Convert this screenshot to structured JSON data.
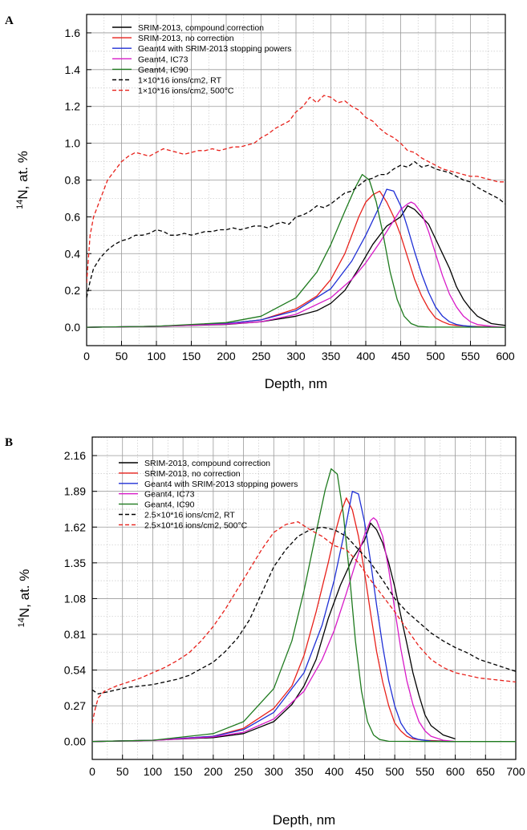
{
  "chart_data": [
    {
      "panel": "A",
      "type": "line",
      "xlabel": "Depth, nm",
      "ylabel_sup": "14",
      "ylabel_main": "N, at. %",
      "xlim": [
        0,
        600
      ],
      "ylim": [
        -0.1,
        1.7
      ],
      "xticks": [
        0,
        50,
        100,
        150,
        200,
        250,
        300,
        350,
        400,
        450,
        500,
        550,
        600
      ],
      "yticks": [
        0.0,
        0.2,
        0.4,
        0.6,
        0.8,
        1.0,
        1.2,
        1.4,
        1.6
      ],
      "ytick_labels": [
        "0.0",
        "0.2",
        "0.4",
        "0.6",
        "0.8",
        "1.0",
        "1.2",
        "1.4",
        "1.6"
      ],
      "grid": true,
      "legend_position": "top-left",
      "series": [
        {
          "name": "SRIM-2013, compound correction",
          "color": "#000000",
          "dash": "solid",
          "x": [
            0,
            100,
            200,
            250,
            300,
            330,
            350,
            370,
            390,
            410,
            430,
            450,
            460,
            470,
            480,
            490,
            500,
            510,
            520,
            530,
            540,
            550,
            560,
            580,
            600
          ],
          "y": [
            0,
            0.005,
            0.015,
            0.03,
            0.06,
            0.09,
            0.13,
            0.2,
            0.32,
            0.45,
            0.55,
            0.6,
            0.66,
            0.64,
            0.6,
            0.56,
            0.48,
            0.4,
            0.32,
            0.22,
            0.15,
            0.1,
            0.06,
            0.02,
            0.01
          ]
        },
        {
          "name": "SRIM-2013, no correction",
          "color": "#e8211b",
          "dash": "solid",
          "x": [
            0,
            100,
            200,
            250,
            300,
            330,
            350,
            370,
            390,
            400,
            410,
            420,
            430,
            440,
            450,
            460,
            470,
            480,
            490,
            500,
            510,
            520,
            530,
            550,
            600
          ],
          "y": [
            0,
            0.005,
            0.02,
            0.04,
            0.1,
            0.17,
            0.26,
            0.4,
            0.6,
            0.68,
            0.72,
            0.74,
            0.68,
            0.6,
            0.5,
            0.38,
            0.26,
            0.17,
            0.1,
            0.05,
            0.03,
            0.015,
            0.01,
            0.005,
            0
          ]
        },
        {
          "name": "Geant4 with SRIM-2013 stopping powers",
          "color": "#1f2fd6",
          "dash": "solid",
          "x": [
            0,
            100,
            200,
            250,
            300,
            350,
            380,
            400,
            420,
            430,
            440,
            450,
            460,
            470,
            480,
            490,
            500,
            510,
            520,
            530,
            540,
            560,
            600
          ],
          "y": [
            0,
            0.005,
            0.02,
            0.04,
            0.09,
            0.21,
            0.36,
            0.5,
            0.66,
            0.75,
            0.74,
            0.66,
            0.54,
            0.41,
            0.29,
            0.19,
            0.11,
            0.06,
            0.03,
            0.015,
            0.008,
            0.002,
            0
          ]
        },
        {
          "name": "Geant4, IC73",
          "color": "#d81bc8",
          "dash": "solid",
          "x": [
            0,
            100,
            200,
            250,
            300,
            350,
            380,
            400,
            420,
            440,
            450,
            460,
            465,
            470,
            480,
            490,
            500,
            510,
            520,
            530,
            540,
            550,
            560,
            580,
            600
          ],
          "y": [
            0,
            0.004,
            0.017,
            0.03,
            0.07,
            0.16,
            0.26,
            0.35,
            0.46,
            0.58,
            0.64,
            0.67,
            0.68,
            0.67,
            0.62,
            0.52,
            0.4,
            0.28,
            0.18,
            0.11,
            0.06,
            0.03,
            0.015,
            0.005,
            0
          ]
        },
        {
          "name": "Geant4, IC90",
          "color": "#1e7a1e",
          "dash": "solid",
          "x": [
            0,
            100,
            200,
            250,
            300,
            330,
            350,
            370,
            385,
            395,
            405,
            415,
            425,
            435,
            445,
            455,
            465,
            475,
            490,
            600
          ],
          "y": [
            0,
            0.005,
            0.025,
            0.06,
            0.16,
            0.3,
            0.45,
            0.63,
            0.76,
            0.83,
            0.8,
            0.68,
            0.5,
            0.3,
            0.15,
            0.06,
            0.02,
            0.005,
            0.001,
            0
          ]
        },
        {
          "name": "1×10*16 ions/cm2, RT",
          "color": "#000000",
          "dash": "dashed",
          "x": [
            0,
            5,
            10,
            20,
            30,
            40,
            50,
            60,
            70,
            80,
            90,
            100,
            110,
            120,
            130,
            140,
            150,
            160,
            170,
            180,
            190,
            200,
            210,
            220,
            230,
            240,
            250,
            260,
            270,
            280,
            290,
            300,
            310,
            320,
            330,
            340,
            350,
            360,
            370,
            380,
            390,
            400,
            410,
            420,
            430,
            440,
            450,
            460,
            470,
            480,
            490,
            500,
            510,
            520,
            530,
            540,
            550,
            560,
            570,
            580,
            590,
            600
          ],
          "y": [
            0.16,
            0.25,
            0.32,
            0.38,
            0.42,
            0.45,
            0.47,
            0.48,
            0.5,
            0.5,
            0.51,
            0.53,
            0.52,
            0.5,
            0.5,
            0.51,
            0.5,
            0.51,
            0.52,
            0.52,
            0.53,
            0.53,
            0.54,
            0.53,
            0.54,
            0.55,
            0.55,
            0.54,
            0.56,
            0.57,
            0.56,
            0.6,
            0.61,
            0.63,
            0.66,
            0.65,
            0.67,
            0.7,
            0.73,
            0.74,
            0.77,
            0.8,
            0.81,
            0.83,
            0.83,
            0.86,
            0.88,
            0.87,
            0.9,
            0.87,
            0.88,
            0.86,
            0.85,
            0.84,
            0.82,
            0.8,
            0.79,
            0.76,
            0.74,
            0.72,
            0.7,
            0.67
          ]
        },
        {
          "name": "1×10*16 ions/cm2, 500°C",
          "color": "#e8211b",
          "dash": "dashed",
          "x": [
            0,
            5,
            10,
            20,
            30,
            40,
            50,
            60,
            70,
            80,
            90,
            100,
            110,
            120,
            130,
            140,
            150,
            160,
            170,
            180,
            190,
            200,
            210,
            220,
            230,
            240,
            250,
            260,
            270,
            280,
            290,
            300,
            310,
            320,
            330,
            340,
            350,
            360,
            370,
            380,
            390,
            400,
            410,
            420,
            430,
            440,
            450,
            460,
            470,
            480,
            490,
            500,
            510,
            520,
            530,
            540,
            550,
            560,
            570,
            580,
            590,
            600
          ],
          "y": [
            0.24,
            0.5,
            0.6,
            0.7,
            0.8,
            0.85,
            0.9,
            0.93,
            0.95,
            0.94,
            0.93,
            0.95,
            0.97,
            0.96,
            0.95,
            0.94,
            0.95,
            0.96,
            0.96,
            0.97,
            0.96,
            0.97,
            0.98,
            0.98,
            0.99,
            1.0,
            1.03,
            1.05,
            1.08,
            1.1,
            1.12,
            1.17,
            1.2,
            1.25,
            1.22,
            1.26,
            1.25,
            1.22,
            1.23,
            1.2,
            1.18,
            1.14,
            1.12,
            1.08,
            1.05,
            1.03,
            1.0,
            0.96,
            0.95,
            0.92,
            0.9,
            0.88,
            0.86,
            0.85,
            0.84,
            0.83,
            0.82,
            0.82,
            0.81,
            0.8,
            0.79,
            0.79
          ]
        }
      ]
    },
    {
      "panel": "B",
      "type": "line",
      "xlabel": "Depth, nm",
      "ylabel_sup": "14",
      "ylabel_main": "N, at. %",
      "xlim": [
        0,
        700
      ],
      "ylim": [
        -0.135,
        2.3
      ],
      "xticks": [
        0,
        50,
        100,
        150,
        200,
        250,
        300,
        350,
        400,
        450,
        500,
        550,
        600,
        650,
        700
      ],
      "yticks": [
        0.0,
        0.27,
        0.54,
        0.81,
        1.08,
        1.35,
        1.62,
        1.89,
        2.16
      ],
      "ytick_labels": [
        "0.00",
        "0.27",
        "0.54",
        "0.81",
        "1.08",
        "1.35",
        "1.62",
        "1.89",
        "2.16"
      ],
      "grid": true,
      "legend_position": "top-left",
      "series": [
        {
          "name": "SRIM-2013, compound correction",
          "color": "#000000",
          "dash": "solid",
          "x": [
            0,
            100,
            200,
            250,
            300,
            330,
            350,
            370,
            390,
            410,
            430,
            450,
            460,
            470,
            480,
            490,
            500,
            510,
            520,
            530,
            540,
            550,
            560,
            580,
            600
          ],
          "y": [
            0,
            0.01,
            0.03,
            0.06,
            0.15,
            0.28,
            0.42,
            0.62,
            0.93,
            1.18,
            1.38,
            1.52,
            1.65,
            1.6,
            1.5,
            1.35,
            1.17,
            0.95,
            0.74,
            0.52,
            0.35,
            0.2,
            0.12,
            0.05,
            0.02
          ]
        },
        {
          "name": "SRIM-2013, no correction",
          "color": "#e8211b",
          "dash": "solid",
          "x": [
            0,
            100,
            200,
            250,
            300,
            330,
            350,
            370,
            390,
            400,
            410,
            420,
            430,
            440,
            450,
            460,
            470,
            480,
            490,
            500,
            510,
            520,
            530,
            550,
            600
          ],
          "y": [
            0,
            0.01,
            0.04,
            0.1,
            0.25,
            0.42,
            0.65,
            0.98,
            1.35,
            1.55,
            1.72,
            1.84,
            1.75,
            1.55,
            1.28,
            0.97,
            0.68,
            0.45,
            0.27,
            0.14,
            0.08,
            0.04,
            0.02,
            0.01,
            0
          ]
        },
        {
          "name": "Geant4 with SRIM-2013 stopping powers",
          "color": "#1f2fd6",
          "dash": "solid",
          "x": [
            0,
            100,
            200,
            250,
            300,
            350,
            380,
            400,
            420,
            430,
            440,
            450,
            460,
            470,
            480,
            490,
            500,
            510,
            520,
            530,
            540,
            560,
            600
          ],
          "y": [
            0,
            0.01,
            0.04,
            0.09,
            0.22,
            0.52,
            0.88,
            1.22,
            1.65,
            1.89,
            1.87,
            1.66,
            1.36,
            1.03,
            0.72,
            0.46,
            0.27,
            0.14,
            0.07,
            0.03,
            0.015,
            0.003,
            0
          ]
        },
        {
          "name": "Geant4, IC73",
          "color": "#d81bc8",
          "dash": "solid",
          "x": [
            0,
            100,
            200,
            250,
            300,
            350,
            380,
            400,
            420,
            440,
            450,
            460,
            465,
            470,
            480,
            490,
            500,
            510,
            520,
            530,
            540,
            550,
            560,
            580,
            600
          ],
          "y": [
            0,
            0.008,
            0.035,
            0.07,
            0.17,
            0.38,
            0.62,
            0.84,
            1.12,
            1.42,
            1.56,
            1.67,
            1.69,
            1.67,
            1.55,
            1.3,
            1.0,
            0.7,
            0.46,
            0.28,
            0.15,
            0.08,
            0.04,
            0.01,
            0
          ]
        },
        {
          "name": "Geant4, IC90",
          "color": "#1e7a1e",
          "dash": "solid",
          "x": [
            0,
            100,
            200,
            250,
            300,
            330,
            350,
            370,
            385,
            395,
            405,
            415,
            425,
            435,
            445,
            455,
            465,
            475,
            490,
            600,
            700
          ],
          "y": [
            0,
            0.01,
            0.06,
            0.15,
            0.4,
            0.76,
            1.14,
            1.58,
            1.9,
            2.06,
            2.02,
            1.72,
            1.27,
            0.76,
            0.38,
            0.15,
            0.05,
            0.015,
            0.002,
            0,
            0
          ]
        },
        {
          "name": "2.5×10*16 ions/cm2, RT",
          "color": "#000000",
          "dash": "dashed",
          "x": [
            0,
            10,
            20,
            40,
            60,
            80,
            100,
            120,
            140,
            160,
            180,
            200,
            220,
            240,
            260,
            280,
            300,
            320,
            340,
            360,
            380,
            400,
            420,
            440,
            460,
            480,
            500,
            520,
            540,
            560,
            580,
            600,
            620,
            640,
            660,
            680,
            700
          ],
          "y": [
            0.39,
            0.36,
            0.37,
            0.39,
            0.41,
            0.42,
            0.43,
            0.45,
            0.47,
            0.5,
            0.55,
            0.6,
            0.68,
            0.78,
            0.92,
            1.12,
            1.32,
            1.45,
            1.55,
            1.6,
            1.62,
            1.6,
            1.55,
            1.45,
            1.35,
            1.22,
            1.08,
            0.98,
            0.9,
            0.82,
            0.76,
            0.71,
            0.67,
            0.62,
            0.59,
            0.56,
            0.53
          ]
        },
        {
          "name": "2.5×10*16 ions/cm2, 500°C",
          "color": "#e8211b",
          "dash": "dashed",
          "x": [
            0,
            5,
            10,
            20,
            40,
            60,
            80,
            100,
            120,
            140,
            160,
            180,
            200,
            220,
            240,
            260,
            280,
            300,
            320,
            340,
            360,
            380,
            400,
            420,
            440,
            460,
            480,
            500,
            520,
            540,
            560,
            580,
            600,
            620,
            640,
            660,
            680,
            700
          ],
          "y": [
            0.14,
            0.25,
            0.33,
            0.38,
            0.42,
            0.45,
            0.48,
            0.52,
            0.56,
            0.61,
            0.67,
            0.76,
            0.87,
            1.0,
            1.15,
            1.3,
            1.45,
            1.58,
            1.64,
            1.66,
            1.6,
            1.55,
            1.48,
            1.45,
            1.35,
            1.22,
            1.1,
            0.98,
            0.85,
            0.72,
            0.62,
            0.56,
            0.52,
            0.5,
            0.48,
            0.47,
            0.46,
            0.45
          ]
        }
      ]
    }
  ]
}
